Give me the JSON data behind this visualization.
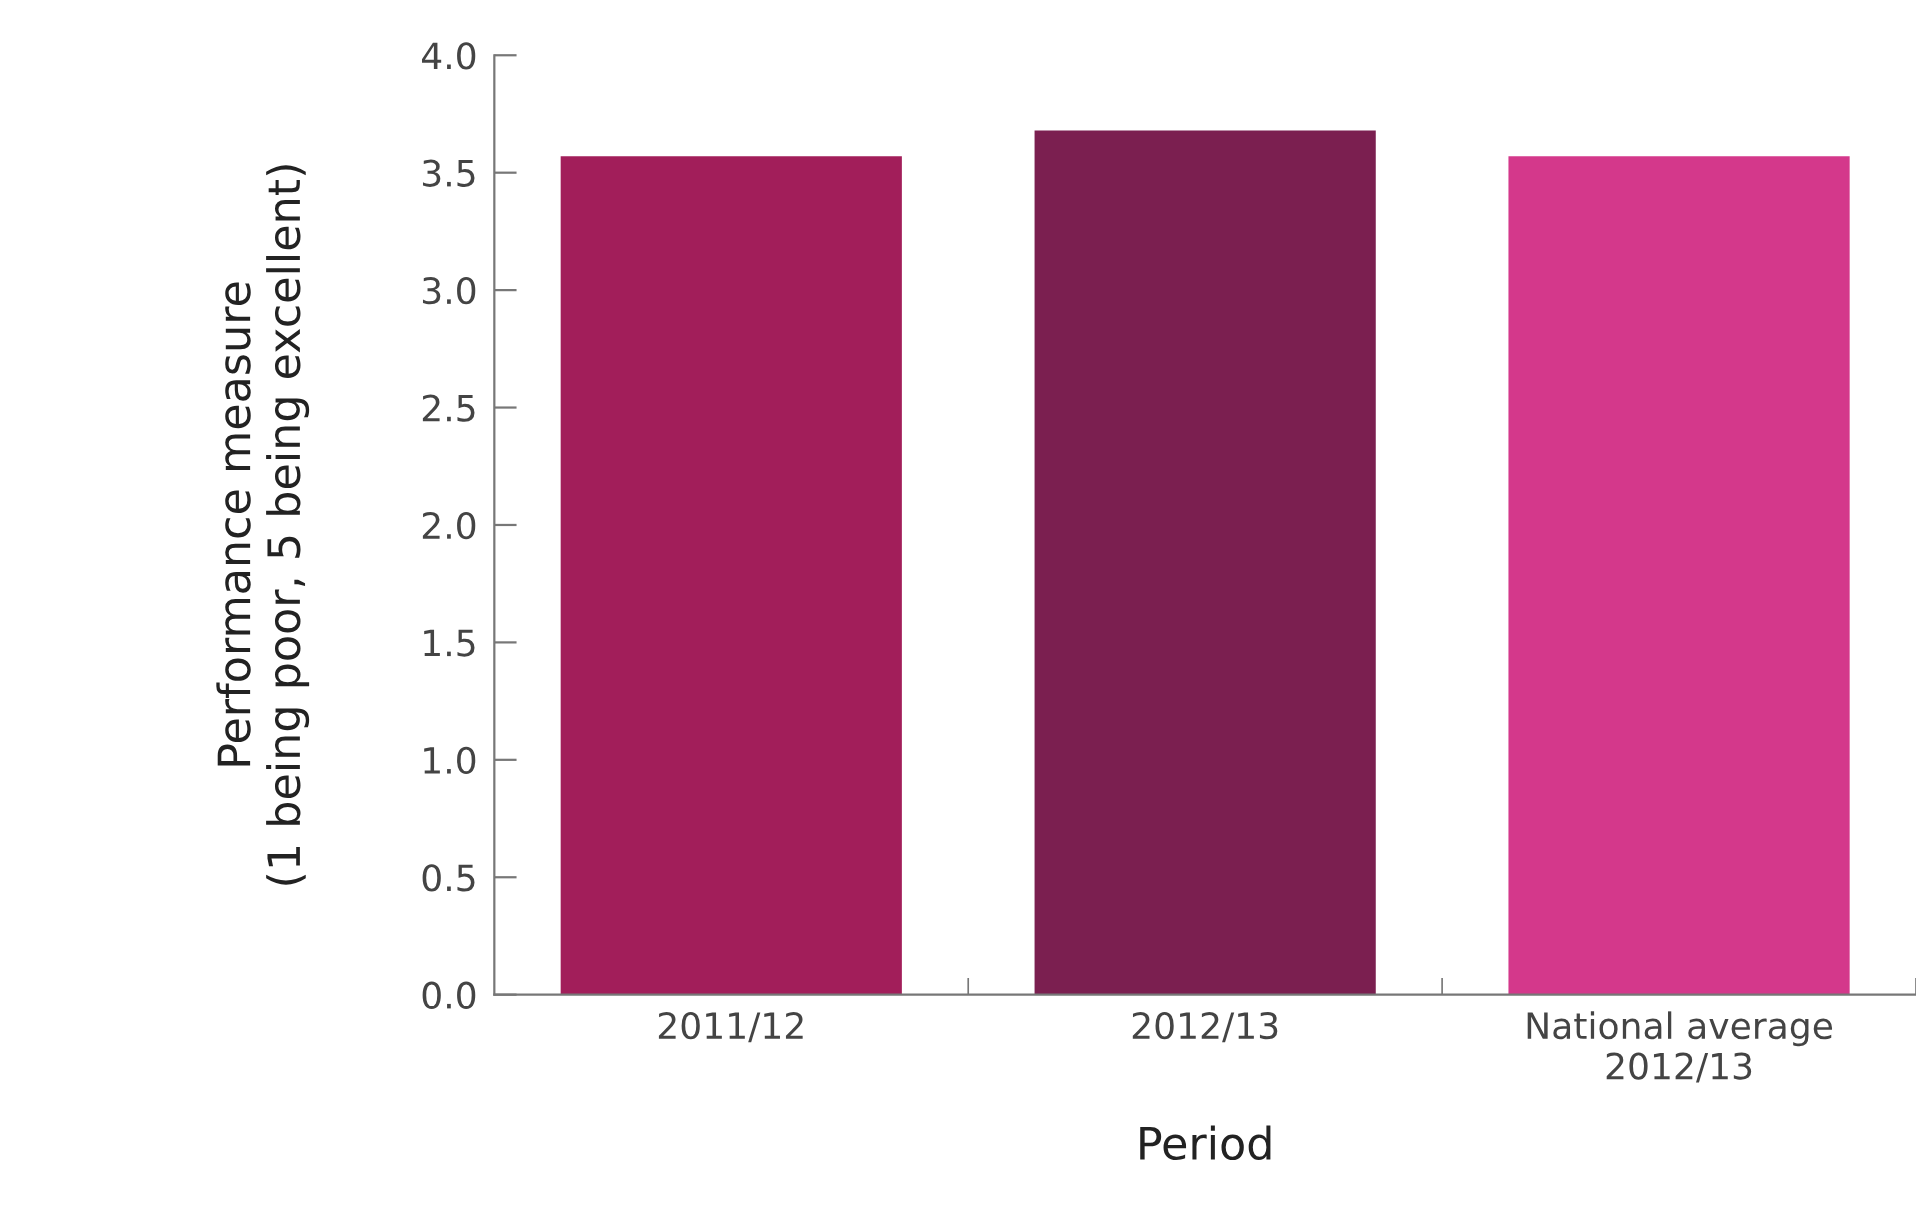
{
  "chart_data": {
    "type": "bar",
    "xlabel": "Period",
    "ylabel": "Performance measure\n(1 being poor, 5 being excellent)",
    "categories": [
      "2011/12",
      "2012/13",
      "National average\n2012/13"
    ],
    "values": [
      3.57,
      3.68,
      3.57
    ],
    "colors": [
      "#a21e5a",
      "#7b1f50",
      "#d4388b"
    ],
    "ylim": [
      0,
      4
    ],
    "yticks": [
      {
        "value": 0,
        "label": "0.0"
      },
      {
        "value": 0.5,
        "label": "0.5"
      },
      {
        "value": 1,
        "label": "1.0"
      },
      {
        "value": 1.5,
        "label": "1.5"
      },
      {
        "value": 2,
        "label": "2.0"
      },
      {
        "value": 2.5,
        "label": "2.5"
      },
      {
        "value": 3,
        "label": "3.0"
      },
      {
        "value": 3.5,
        "label": "3.5"
      },
      {
        "value": 4,
        "label": "4.0"
      }
    ],
    "grid": false
  }
}
